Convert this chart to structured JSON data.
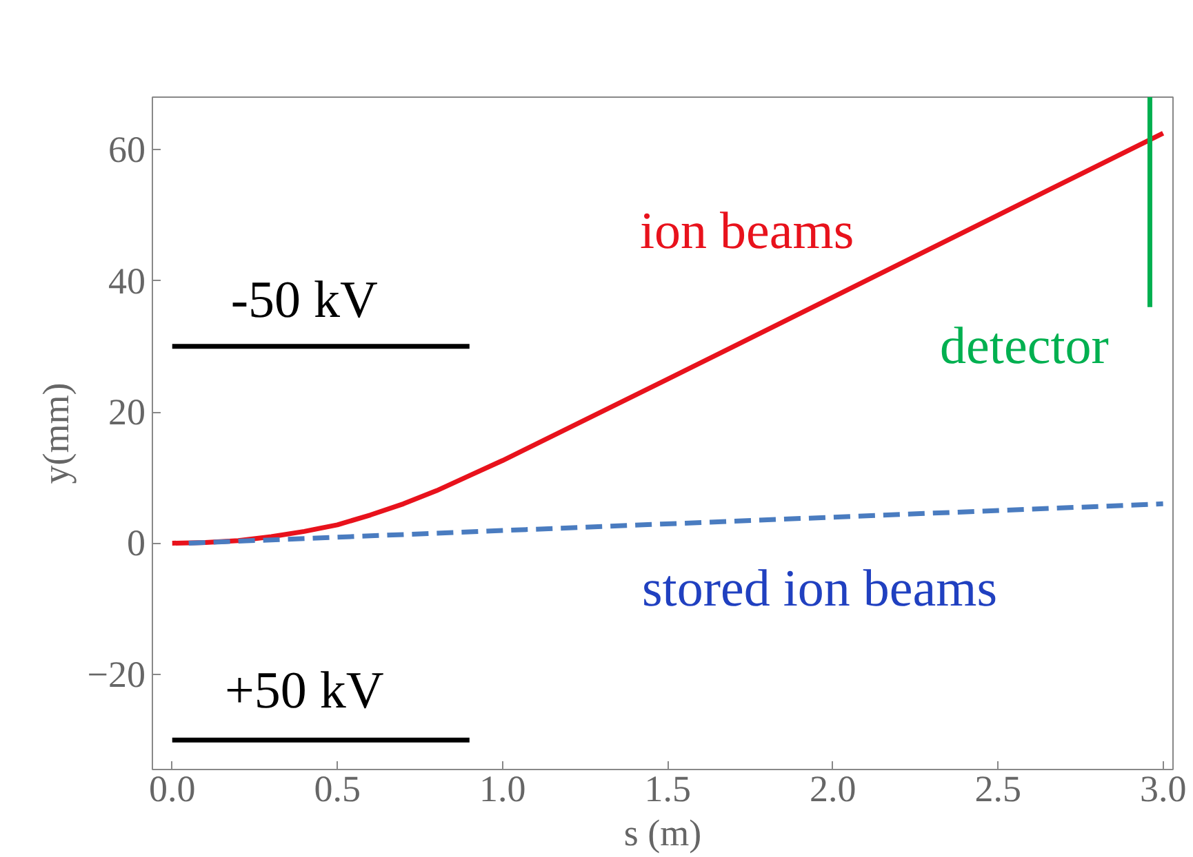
{
  "chart_data": {
    "type": "line",
    "xlabel": "s (m)",
    "ylabel": "y(mm)",
    "xlim": [
      -0.06,
      3.03
    ],
    "ylim": [
      -34.5,
      68
    ],
    "xticks": [
      {
        "value": 0,
        "label": "0.0"
      },
      0.5,
      {
        "value": 1,
        "label": "1.0"
      },
      1.5,
      {
        "value": 2,
        "label": "2.0"
      },
      2.5,
      {
        "value": 3,
        "label": "3.0"
      }
    ],
    "yticks": [
      {
        "value": -20,
        "label": "−20"
      },
      0,
      20,
      40,
      60
    ],
    "grid": false,
    "marker": "none",
    "series": [
      {
        "name": "ion beams",
        "color": "#e8121c",
        "line_style": "solid",
        "x": [
          0,
          0.1,
          0.2,
          0.3,
          0.4,
          0.5,
          0.6,
          0.7,
          0.8,
          0.9,
          1.0,
          1.5,
          2.0,
          2.5,
          3.0
        ],
        "values": [
          0,
          0.1,
          0.4,
          1.0,
          1.8,
          2.8,
          4.3,
          6,
          8,
          10.3,
          12.6,
          25,
          37.5,
          50,
          62.5
        ]
      },
      {
        "name": "stored ion beams",
        "color": "#4a7cc0",
        "line_style": "dashed",
        "x": [
          0.05,
          3.0
        ],
        "values": [
          0,
          6
        ]
      },
      {
        "name": "detector",
        "color": "#00b050",
        "line_style": "solid",
        "x": [
          2.96,
          2.96
        ],
        "values": [
          36,
          68
        ]
      },
      {
        "name": "-50 kV",
        "color": "#000000",
        "line_style": "solid",
        "x": [
          0,
          0.9
        ],
        "values": [
          30,
          30
        ]
      },
      {
        "name": "+50 kV",
        "color": "#000000",
        "line_style": "solid",
        "x": [
          0,
          0.9
        ],
        "values": [
          -30,
          -30
        ]
      }
    ]
  }
}
